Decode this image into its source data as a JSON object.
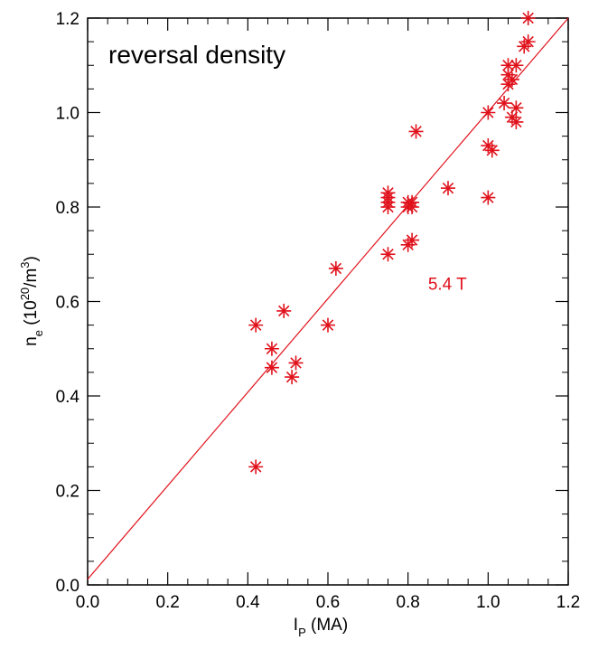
{
  "chart_data": {
    "type": "scatter",
    "title": "reversal density",
    "xlabel": {
      "main": "I",
      "sub": "P",
      "rest": " (MA)"
    },
    "ylabel": {
      "main": "n",
      "sub": "e",
      "pre": " (10",
      "sup1": "20",
      "mid": "/m",
      "sup2": "3",
      "post": ")"
    },
    "xlim": [
      0.0,
      1.2
    ],
    "ylim": [
      0.0,
      1.2
    ],
    "xticks": [
      "0.0",
      "0.2",
      "0.4",
      "0.6",
      "0.8",
      "1.0",
      "1.2"
    ],
    "yticks": [
      "0.0",
      "0.2",
      "0.4",
      "0.6",
      "0.8",
      "1.0",
      "1.2"
    ],
    "grid": false,
    "color": "#e0111b",
    "series": [
      {
        "points": [
          [
            0.42,
            0.25
          ],
          [
            0.42,
            0.55
          ],
          [
            0.46,
            0.46
          ],
          [
            0.46,
            0.5
          ],
          [
            0.49,
            0.58
          ],
          [
            0.51,
            0.44
          ],
          [
            0.52,
            0.47
          ],
          [
            0.6,
            0.55
          ],
          [
            0.62,
            0.67
          ],
          [
            0.75,
            0.7
          ],
          [
            0.75,
            0.8
          ],
          [
            0.75,
            0.81
          ],
          [
            0.75,
            0.82
          ],
          [
            0.75,
            0.83
          ],
          [
            0.8,
            0.72
          ],
          [
            0.81,
            0.73
          ],
          [
            0.8,
            0.8
          ],
          [
            0.81,
            0.81
          ],
          [
            0.8,
            0.81
          ],
          [
            0.81,
            0.8
          ],
          [
            0.82,
            0.96
          ],
          [
            0.9,
            0.84
          ],
          [
            1.0,
            0.82
          ],
          [
            1.0,
            0.93
          ],
          [
            1.01,
            0.92
          ],
          [
            1.0,
            1.0
          ],
          [
            1.04,
            1.02
          ],
          [
            1.05,
            1.06
          ],
          [
            1.06,
            1.07
          ],
          [
            1.05,
            1.08
          ],
          [
            1.05,
            1.1
          ],
          [
            1.07,
            1.1
          ],
          [
            1.06,
            0.99
          ],
          [
            1.07,
            0.98
          ],
          [
            1.07,
            1.01
          ],
          [
            1.09,
            1.14
          ],
          [
            1.1,
            1.15
          ],
          [
            1.1,
            1.2
          ]
        ]
      }
    ],
    "fit_line": {
      "x": [
        0.0,
        1.2
      ],
      "y": [
        0.012,
        1.2
      ]
    },
    "annotation": {
      "text": "5.4 T",
      "x": 0.85,
      "y": 0.625
    }
  }
}
